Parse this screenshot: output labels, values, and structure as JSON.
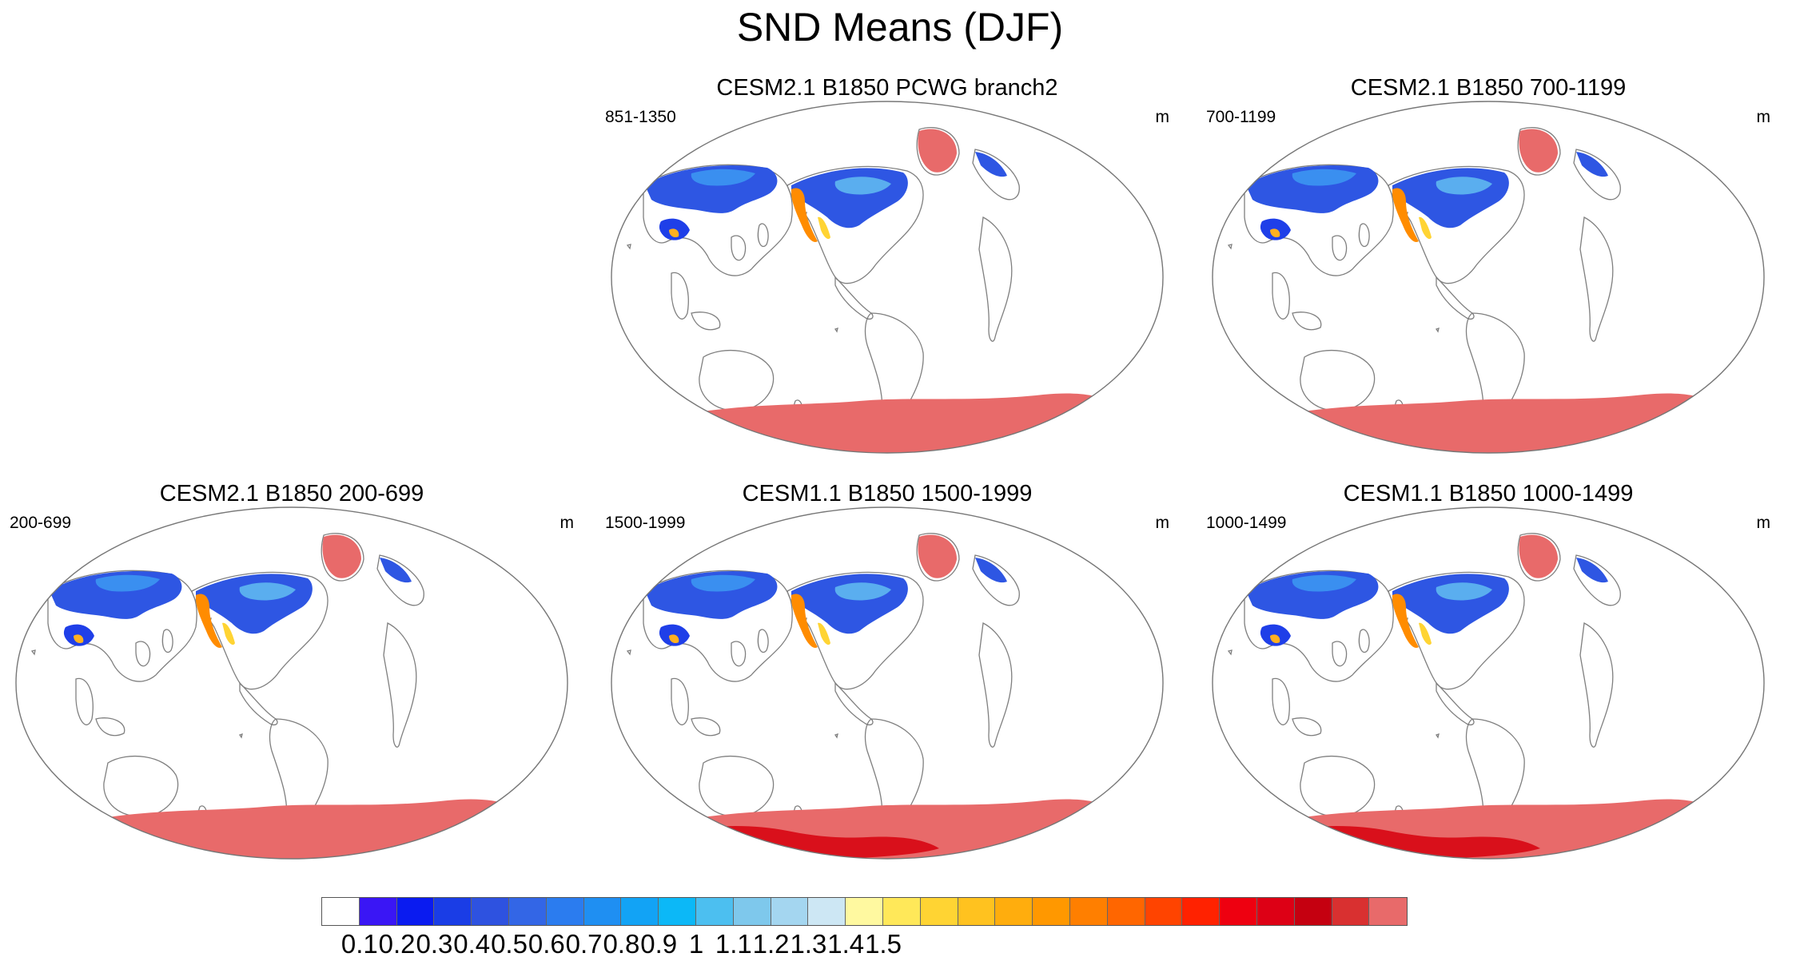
{
  "title": "SND Means (DJF)",
  "panels": [
    {
      "title": "CESM2.1 B1850 PCWG branch2",
      "period": "851-1350",
      "units": "m",
      "greenland_ice": true,
      "antarctic_deep": false
    },
    {
      "title": "CESM2.1 B1850 700-1199",
      "period": "700-1199",
      "units": "m",
      "greenland_ice": true,
      "antarctic_deep": false
    },
    {
      "title": "CESM2.1 B1850 200-699",
      "period": "200-699",
      "units": "m",
      "greenland_ice": true,
      "antarctic_deep": false
    },
    {
      "title": "CESM1.1 B1850 1500-1999",
      "period": "1500-1999",
      "units": "m",
      "greenland_ice": true,
      "antarctic_deep": true
    },
    {
      "title": "CESM1.1 B1850 1000-1499",
      "period": "1000-1499",
      "units": "m",
      "greenland_ice": true,
      "antarctic_deep": true
    }
  ],
  "colorbar": {
    "labels": [
      "0.1",
      "0.2",
      "0.3",
      "0.4",
      "0.5",
      "0.6",
      "0.7",
      "0.8",
      "0.9",
      "1",
      "1.1",
      "1.2",
      "1.3",
      "1.4",
      "1.5"
    ],
    "colors": [
      "#ffffff",
      "#3a16f5",
      "#0a1bf0",
      "#1a3de6",
      "#2e52e0",
      "#3366e6",
      "#2b7cef",
      "#1f8ff2",
      "#12a3f5",
      "#0cb8f7",
      "#4cbff0",
      "#7ec8ec",
      "#a4d6f0",
      "#cde7f4",
      "#fff9a0",
      "#ffe859",
      "#ffd433",
      "#ffc21f",
      "#ffad0d",
      "#ff9800",
      "#ff7f00",
      "#ff6600",
      "#ff4400",
      "#ff2200",
      "#ee0010",
      "#dd0015",
      "#c50010",
      "#d93030",
      "#e86a6a"
    ]
  },
  "colors": {
    "ice": "#e86a6a",
    "deep_ice": "#d9101b",
    "coast": "#7f7f7f",
    "ocean": "#ffffff"
  }
}
